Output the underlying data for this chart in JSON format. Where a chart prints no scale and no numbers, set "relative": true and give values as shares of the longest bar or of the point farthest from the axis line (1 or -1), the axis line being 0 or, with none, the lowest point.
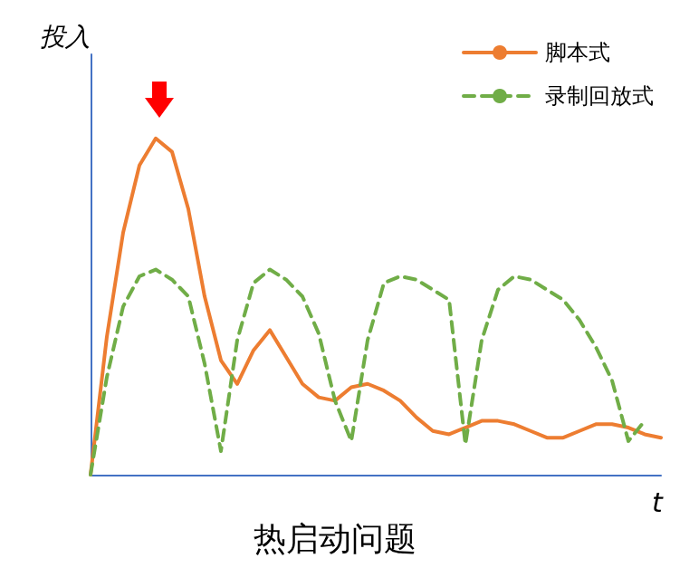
{
  "chart_data": {
    "type": "line",
    "title": "热启动问题",
    "ylabel": "投入",
    "xlabel": "t",
    "relative": true,
    "grid": false,
    "legend": "top right",
    "marker": "none",
    "categories": [
      null,
      null,
      null,
      null,
      null,
      null,
      null,
      null,
      null,
      null,
      null,
      null,
      null,
      null,
      null,
      null,
      null,
      null,
      null,
      null,
      null,
      null,
      null,
      null,
      null,
      null,
      null,
      null,
      null,
      null,
      null,
      null,
      null,
      null,
      null,
      null
    ],
    "series": [
      {
        "name": "脚本式",
        "color": "#ed7d31",
        "line_style": "solid",
        "values": [
          0,
          0.41,
          0.72,
          0.92,
          1,
          0.96,
          0.79,
          0.53,
          0.34,
          0.27,
          0.37,
          0.43,
          0.35,
          0.27,
          0.23,
          0.22,
          0.26,
          0.27,
          0.25,
          0.22,
          0.17,
          0.13,
          0.12,
          0.14,
          0.16,
          0.16,
          0.15,
          0.13,
          0.11,
          0.11,
          0.13,
          0.15,
          0.15,
          0.14,
          0.12,
          0.11
        ]
      },
      {
        "name": "录制回放式",
        "color": "#70ad47",
        "line_style": "dashed",
        "values": [
          0,
          0.29,
          0.5,
          0.59,
          0.61,
          0.58,
          0.53,
          0.33,
          0.07,
          0.4,
          0.57,
          0.61,
          0.58,
          0.53,
          0.42,
          0.22,
          0.1,
          0.4,
          0.57,
          0.59,
          0.58,
          0.55,
          0.52,
          0.09,
          0.4,
          0.55,
          0.59,
          0.58,
          0.55,
          0.52,
          0.46,
          0.38,
          0.28,
          0.1,
          0.16,
          null
        ]
      }
    ]
  }
}
